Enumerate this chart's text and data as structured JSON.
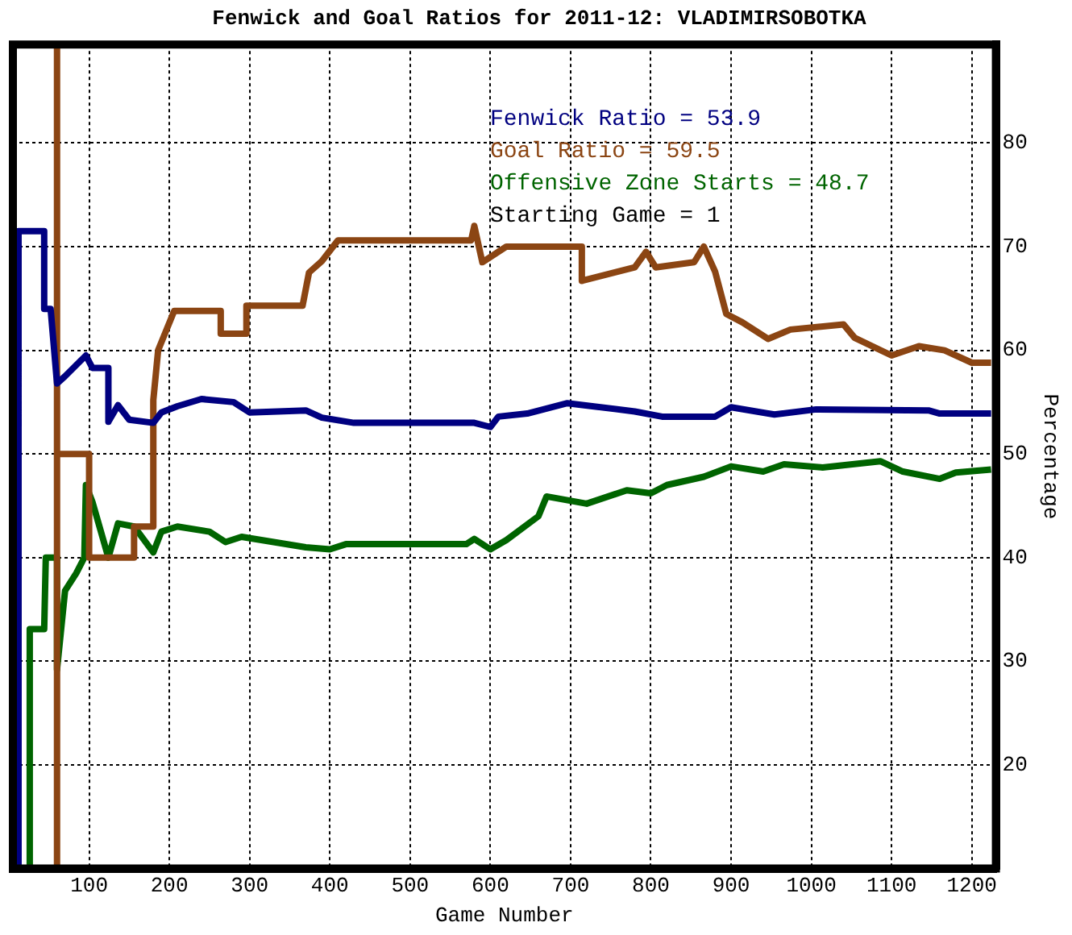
{
  "chart_data": {
    "type": "line",
    "title": "Fenwick and Goal Ratios for 2011-12: VLADIMIRSOBOTKA",
    "xlabel": "Game Number",
    "ylabel": "Percentage",
    "xlim": [
      5,
      1230
    ],
    "xticks": [
      100,
      200,
      300,
      400,
      500,
      600,
      700,
      800,
      900,
      1000,
      1100,
      1200
    ],
    "ylim": [
      10,
      89.5
    ],
    "yticks": [
      20,
      30,
      40,
      50,
      60,
      70,
      80
    ],
    "grid": true,
    "legend": "top right",
    "marker": "none",
    "line_style": "solid",
    "annotations": [
      "Starting Game = 1"
    ],
    "series": [
      {
        "name": "Fenwick Ratio = 53.9",
        "color": "#000080",
        "x": [
          12,
          12,
          44,
          44,
          52,
          60,
          70,
          96,
          104,
          124,
          124,
          136,
          150,
          180,
          190,
          210,
          240,
          280,
          300,
          370,
          390,
          430,
          580,
          600,
          610,
          646,
          696,
          780,
          814,
          880,
          900,
          954,
          1006,
          1146,
          1160,
          1224
        ],
        "values": [
          10,
          71.5,
          71.5,
          64,
          64,
          56.8,
          57.5,
          59.5,
          58.3,
          58.3,
          53.1,
          54.7,
          53.3,
          53,
          54,
          54.6,
          55.3,
          55,
          54,
          54.2,
          53.5,
          53,
          53,
          52.6,
          53.6,
          53.9,
          54.9,
          54.1,
          53.6,
          53.6,
          54.5,
          53.8,
          54.3,
          54.2,
          53.9,
          53.9
        ]
      },
      {
        "name": "Goal Ratio = 59.5",
        "color": "#8b4513",
        "x": [
          60,
          60,
          60,
          60,
          100,
          100,
          156,
          156,
          180,
          180,
          186,
          206,
          264,
          264,
          296,
          296,
          366,
          374,
          390,
          410,
          576,
          580,
          590,
          620,
          714,
          714,
          780,
          794,
          806,
          854,
          866,
          880,
          894,
          914,
          946,
          974,
          1040,
          1054,
          1100,
          1134,
          1166,
          1200,
          1224
        ],
        "values": [
          10,
          89.5,
          50,
          50,
          50,
          40,
          40,
          43,
          43,
          55.2,
          60,
          63.8,
          63.8,
          61.6,
          61.6,
          64.3,
          64.3,
          67.5,
          68.6,
          70.6,
          70.6,
          72,
          68.5,
          70,
          70,
          66.7,
          68,
          69.5,
          68,
          68.5,
          70,
          67.6,
          63.5,
          62.7,
          61.1,
          62,
          62.5,
          61.2,
          59.5,
          60.4,
          60,
          58.8,
          58.8
        ]
      },
      {
        "name": "Offensive Zone Starts = 48.7",
        "color": "#006400",
        "x": [
          26,
          26,
          44,
          46,
          60,
          60,
          70,
          84,
          94,
          96,
          104,
          124,
          136,
          156,
          180,
          190,
          210,
          250,
          270,
          290,
          370,
          400,
          420,
          570,
          580,
          600,
          620,
          660,
          670,
          720,
          770,
          800,
          820,
          866,
          900,
          940,
          966,
          1014,
          1086,
          1114,
          1160,
          1180,
          1224
        ],
        "values": [
          10,
          33.1,
          33.1,
          40,
          40,
          29.2,
          36.8,
          38.5,
          40,
          47,
          45.4,
          40,
          43.3,
          43,
          40.5,
          42.5,
          43,
          42.5,
          41.5,
          42,
          41,
          40.8,
          41.3,
          41.3,
          41.8,
          40.8,
          41.7,
          44,
          45.9,
          45.2,
          46.5,
          46.2,
          47,
          47.8,
          48.8,
          48.3,
          49,
          48.7,
          49.3,
          48.3,
          47.6,
          48.2,
          48.5
        ]
      }
    ]
  }
}
